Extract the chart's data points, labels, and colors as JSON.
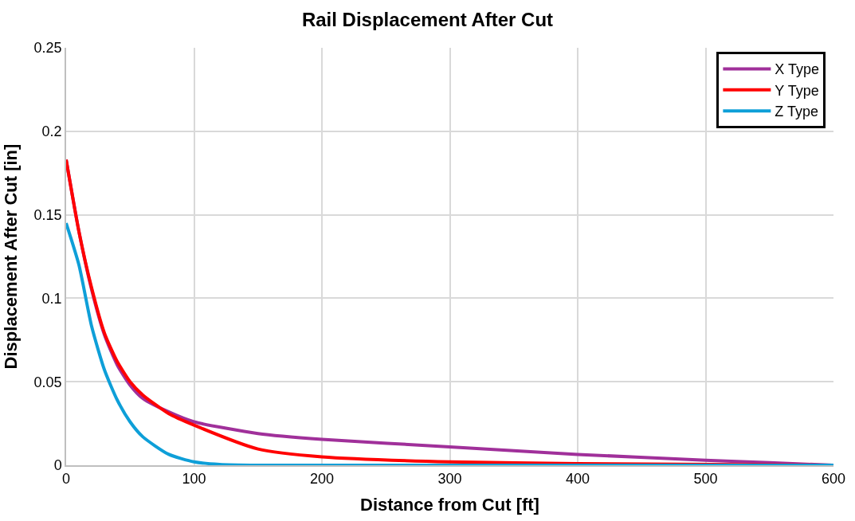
{
  "chart_data": {
    "type": "line",
    "title": "Rail Displacement After Cut",
    "xlabel": "Distance from Cut [ft]",
    "ylabel": "Displacement After Cut [in]",
    "xlim": [
      0,
      600
    ],
    "xticks": [
      0,
      100,
      200,
      300,
      400,
      500,
      600
    ],
    "ylim": [
      0,
      0.25
    ],
    "yticks": [
      0,
      0.05,
      0.1,
      0.15,
      0.2,
      0.25
    ],
    "grid": true,
    "legend": "top right",
    "marker": "none",
    "line_style": "solid",
    "series": [
      {
        "name": "X Type",
        "color": "#a0309a",
        "x": [
          0,
          10,
          20,
          30,
          40,
          50,
          60,
          80,
          100,
          150,
          200,
          300,
          400,
          500,
          550,
          600
        ],
        "values": [
          0.183,
          0.14,
          0.105,
          0.078,
          0.06,
          0.048,
          0.04,
          0.032,
          0.026,
          0.019,
          0.0155,
          0.011,
          0.0065,
          0.003,
          0.0015,
          0
        ]
      },
      {
        "name": "Y Type",
        "color": "#ff0000",
        "x": [
          0,
          10,
          20,
          30,
          40,
          50,
          60,
          80,
          100,
          150,
          200,
          300,
          400,
          600
        ],
        "values": [
          0.183,
          0.14,
          0.106,
          0.079,
          0.062,
          0.05,
          0.042,
          0.031,
          0.024,
          0.0097,
          0.005,
          0.002,
          0.001,
          0
        ]
      },
      {
        "name": "Z Type",
        "color": "#0e9fd8",
        "x": [
          0,
          10,
          20,
          30,
          40,
          50,
          60,
          80,
          100,
          120,
          150,
          600
        ],
        "values": [
          0.145,
          0.12,
          0.083,
          0.057,
          0.039,
          0.026,
          0.017,
          0.0066,
          0.002,
          0.0005,
          0,
          0
        ]
      }
    ]
  }
}
